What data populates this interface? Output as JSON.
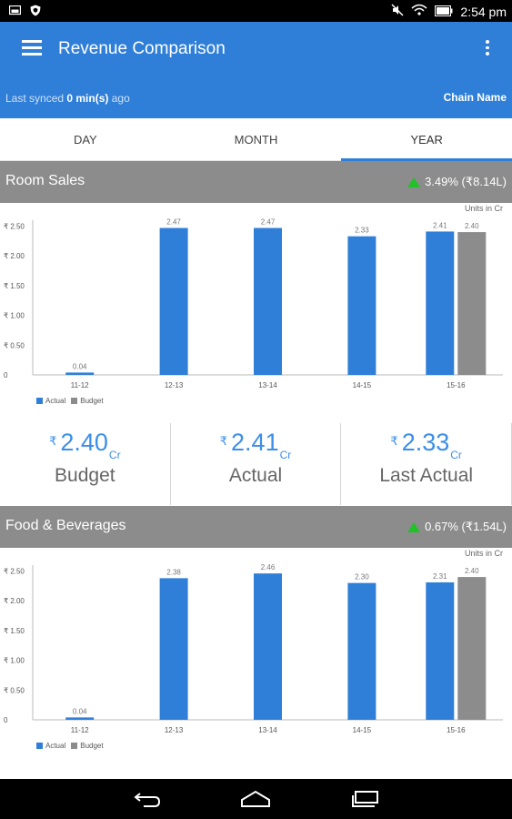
{
  "status_bar": {
    "time": "2:54 pm",
    "left_icons": [
      "photo-icon",
      "shield-icon"
    ],
    "right_icons": [
      "mute-icon",
      "wifi-icon",
      "battery-icon"
    ]
  },
  "app_bar": {
    "title": "Revenue Comparison",
    "sync_prefix": "Last synced ",
    "sync_value": "0 min(s)",
    "sync_suffix": " ago",
    "chain_name": "Chain Name"
  },
  "tabs": [
    {
      "label": "DAY",
      "active": false
    },
    {
      "label": "MONTH",
      "active": false
    },
    {
      "label": "YEAR",
      "active": true
    }
  ],
  "colors": {
    "primary": "#2f7fd8",
    "actual": "#2f7fd8",
    "budget": "#8c8c8c",
    "positive": "#21c12a",
    "header_gray": "#8c8c8c"
  },
  "sections": [
    {
      "name": "Room Sales",
      "change": "3.49% (₹8.14L)",
      "units": "Units in Cr"
    },
    {
      "name": "Food & Beverages",
      "change": "0.67% (₹1.54L)",
      "units": "Units in Cr"
    }
  ],
  "legend": {
    "actual": "Actual",
    "budget": "Budget"
  },
  "summary": [
    {
      "value": "2.40",
      "currency": "₹",
      "unit": "Cr",
      "label": "Budget"
    },
    {
      "value": "2.41",
      "currency": "₹",
      "unit": "Cr",
      "label": "Actual"
    },
    {
      "value": "2.33",
      "currency": "₹",
      "unit": "Cr",
      "label": "Last Actual"
    }
  ],
  "chart_data": [
    {
      "type": "bar",
      "title": "Room Sales",
      "categories": [
        "11-12",
        "12-13",
        "13-14",
        "14-15",
        "15-16"
      ],
      "y_tick_labels": [
        "₹ 2.50",
        "₹ 2.00",
        "₹ 1.50",
        "₹ 1.00",
        "₹ 0.50",
        "0"
      ],
      "ylim": [
        0,
        2.6
      ],
      "series": [
        {
          "name": "Actual",
          "values": [
            0.04,
            2.47,
            2.47,
            2.33,
            2.41
          ],
          "labels": [
            "0.04",
            "2.47",
            "2.47",
            "2.33",
            "2.41"
          ]
        },
        {
          "name": "Budget",
          "values": [
            null,
            null,
            null,
            null,
            2.4
          ],
          "labels": [
            null,
            null,
            null,
            null,
            "2.40"
          ]
        }
      ],
      "legend_position": "bottom-left"
    },
    {
      "type": "bar",
      "title": "Food & Beverages",
      "categories": [
        "11-12",
        "12-13",
        "13-14",
        "14-15",
        "15-16"
      ],
      "y_tick_labels": [
        "₹ 2.50",
        "₹ 2.00",
        "₹ 1.50",
        "₹ 1.00",
        "₹ 0.50",
        "0"
      ],
      "ylim": [
        0,
        2.6
      ],
      "series": [
        {
          "name": "Actual",
          "values": [
            0.04,
            2.38,
            2.46,
            2.3,
            2.31
          ],
          "labels": [
            "0.04",
            "2.38",
            "2.46",
            "2.30",
            "2.31"
          ]
        },
        {
          "name": "Budget",
          "values": [
            null,
            null,
            null,
            null,
            2.4
          ],
          "labels": [
            null,
            null,
            null,
            null,
            "2.40"
          ]
        }
      ],
      "legend_position": "bottom-left"
    }
  ],
  "nav_bar": {
    "icons": [
      "back-icon",
      "home-icon",
      "recents-icon"
    ]
  }
}
